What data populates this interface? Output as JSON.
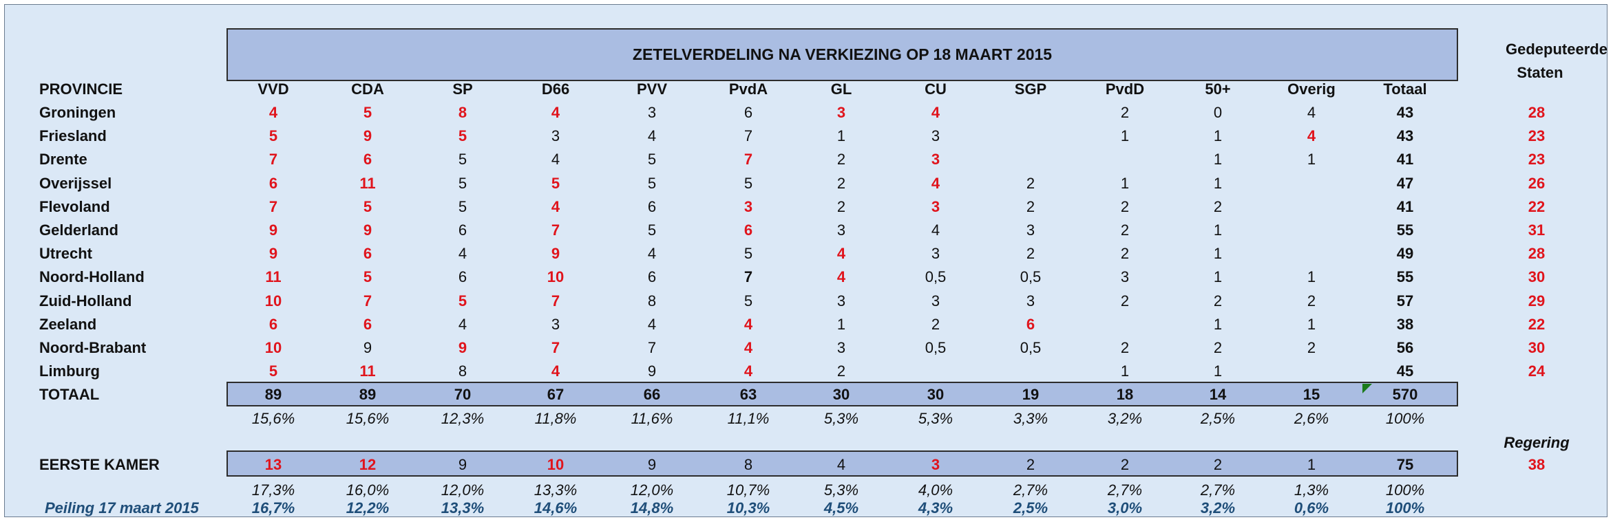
{
  "title": "ZETELVERDELING NA VERKIEZING OP 18 MAART 2015",
  "gs_header": [
    "Gedeputeerde",
    "Staten"
  ],
  "row_header": "PROVINCIE",
  "columns": [
    "VVD",
    "CDA",
    "SP",
    "D66",
    "PVV",
    "PvdA",
    "GL",
    "CU",
    "SGP",
    "PvdD",
    "50+",
    "Overig",
    "Totaal"
  ],
  "provinces": [
    {
      "name": "Groningen",
      "values": [
        "4",
        "5",
        "8",
        "4",
        "3",
        "6",
        "3",
        "4",
        "",
        "2",
        "0",
        "4",
        "43"
      ],
      "red": [
        0,
        1,
        2,
        3,
        6,
        7
      ],
      "gs": "28"
    },
    {
      "name": "Friesland",
      "values": [
        "5",
        "9",
        "5",
        "3",
        "4",
        "7",
        "1",
        "3",
        "",
        "1",
        "1",
        "4",
        "43"
      ],
      "red": [
        0,
        1,
        2,
        11
      ],
      "gs": "23"
    },
    {
      "name": "Drente",
      "values": [
        "7",
        "6",
        "5",
        "4",
        "5",
        "7",
        "2",
        "3",
        "",
        "",
        "1",
        "1",
        "41"
      ],
      "red": [
        0,
        1,
        5,
        7
      ],
      "gs": "23"
    },
    {
      "name": "Overijssel",
      "values": [
        "6",
        "11",
        "5",
        "5",
        "5",
        "5",
        "2",
        "4",
        "2",
        "1",
        "1",
        "",
        "47"
      ],
      "red": [
        0,
        1,
        3,
        7
      ],
      "gs": "26"
    },
    {
      "name": "Flevoland",
      "values": [
        "7",
        "5",
        "5",
        "4",
        "6",
        "3",
        "2",
        "3",
        "2",
        "2",
        "2",
        "",
        "41"
      ],
      "red": [
        0,
        1,
        3,
        5,
        7
      ],
      "gs": "22"
    },
    {
      "name": "Gelderland",
      "values": [
        "9",
        "9",
        "6",
        "7",
        "5",
        "6",
        "3",
        "4",
        "3",
        "2",
        "1",
        "",
        "55"
      ],
      "red": [
        0,
        1,
        3,
        5
      ],
      "gs": "31"
    },
    {
      "name": "Utrecht",
      "values": [
        "9",
        "6",
        "4",
        "9",
        "4",
        "5",
        "4",
        "3",
        "2",
        "2",
        "1",
        "",
        "49"
      ],
      "red": [
        0,
        1,
        3,
        6
      ],
      "gs": "28"
    },
    {
      "name": "Noord-Holland",
      "values": [
        "11",
        "5",
        "6",
        "10",
        "6",
        "7",
        "4",
        "0,5",
        "0,5",
        "3",
        "1",
        "1",
        "55"
      ],
      "red": [
        0,
        1,
        3,
        6
      ],
      "bold": [
        5
      ],
      "gs": "30"
    },
    {
      "name": "Zuid-Holland",
      "values": [
        "10",
        "7",
        "5",
        "7",
        "8",
        "5",
        "3",
        "3",
        "3",
        "2",
        "2",
        "2",
        "57"
      ],
      "red": [
        0,
        1,
        2,
        3
      ],
      "gs": "29"
    },
    {
      "name": "Zeeland",
      "values": [
        "6",
        "6",
        "4",
        "3",
        "4",
        "4",
        "1",
        "2",
        "6",
        "",
        "1",
        "1",
        "38"
      ],
      "red": [
        0,
        1,
        5,
        8
      ],
      "gs": "22"
    },
    {
      "name": "Noord-Brabant",
      "values": [
        "10",
        "9",
        "9",
        "7",
        "7",
        "4",
        "3",
        "0,5",
        "0,5",
        "2",
        "2",
        "2",
        "56"
      ],
      "red": [
        0,
        2,
        3,
        5
      ],
      "gs": "30"
    },
    {
      "name": "Limburg",
      "values": [
        "5",
        "11",
        "8",
        "4",
        "9",
        "4",
        "2",
        "",
        "",
        "1",
        "1",
        "",
        "45"
      ],
      "red": [
        0,
        1,
        3,
        5
      ],
      "gs": "24"
    }
  ],
  "totaal": {
    "label": "TOTAAL",
    "values": [
      "89",
      "89",
      "70",
      "67",
      "66",
      "63",
      "30",
      "30",
      "19",
      "18",
      "14",
      "15",
      "570"
    ]
  },
  "totaal_pct": [
    "15,6%",
    "15,6%",
    "12,3%",
    "11,8%",
    "11,6%",
    "11,1%",
    "5,3%",
    "5,3%",
    "3,3%",
    "3,2%",
    "2,5%",
    "2,6%",
    "100%"
  ],
  "regering_label": "Regering",
  "eerste_kamer": {
    "label": "EERSTE KAMER",
    "values": [
      "13",
      "12",
      "9",
      "10",
      "9",
      "8",
      "4",
      "3",
      "2",
      "2",
      "2",
      "1",
      "75"
    ],
    "red": [
      0,
      1,
      3,
      7
    ],
    "regering": "38"
  },
  "ek_pct": [
    "17,3%",
    "16,0%",
    "12,0%",
    "13,3%",
    "12,0%",
    "10,7%",
    "5,3%",
    "4,0%",
    "2,7%",
    "2,7%",
    "2,7%",
    "1,3%",
    "100%"
  ],
  "peiling": {
    "label": "Peiling 17 maart 2015",
    "values": [
      "16,7%",
      "12,2%",
      "13,3%",
      "14,6%",
      "14,8%",
      "10,3%",
      "4,5%",
      "4,3%",
      "2,5%",
      "3,0%",
      "3,2%",
      "0,6%",
      "100%"
    ]
  }
}
